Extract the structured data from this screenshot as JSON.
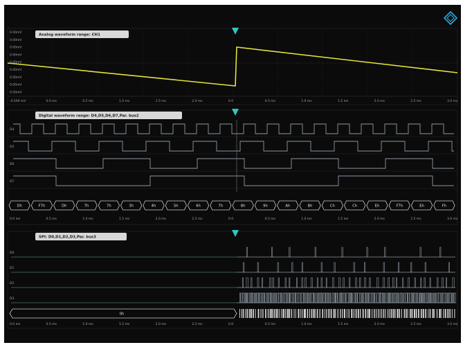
{
  "analog_panel": {
    "title": "Analog waveform range: CH1",
    "y_labels": [
      "0.00mV",
      "0.00mV",
      "0.00mV",
      "0.00mV",
      "0.00mV",
      "0.00mV",
      "0.00mV",
      "0.00mV",
      "0.00mV"
    ],
    "x_labels": [
      "-0.500 mV",
      "0.0 ms",
      "0.5 ms",
      "1.0 ms",
      "1.5 ms",
      "2.0 ms",
      "0.0",
      "0.5 ms",
      "1.0 ms",
      "1.5 ms",
      "2.0 ms",
      "2.5 ms",
      "3.0 ms"
    ],
    "trace_color": "#e4e43a"
  },
  "digital_panel": {
    "title": "Digital waveform range: D4,D5,D6,D7,Par. bus2",
    "channels": [
      "D4",
      "D5",
      "D6",
      "D7"
    ],
    "bus_values": [
      "Dh",
      "F7h",
      "Dh",
      "7h",
      "7h",
      "3h",
      "4h",
      "5h",
      "6h",
      "7h",
      "8h",
      "9h",
      "Ah",
      "Bh",
      "Ch",
      "Ch",
      "Eh",
      "F7h",
      "Eh",
      "Fh"
    ],
    "x_labels": [
      "0.0 ms",
      "0.5 ms",
      "1.0 ms",
      "1.5 ms",
      "2.0 ms",
      "2.5 ms",
      "0.0",
      "0.5 ms",
      "1.0 ms",
      "1.5 ms",
      "2.0 ms",
      "2.5 ms",
      "3.0 ms"
    ]
  },
  "spi_panel": {
    "title": "SPI: D0,D1,D2,D3,Par. bus3",
    "channels": [
      "D0",
      "D1",
      "D2",
      "D3"
    ],
    "bus_value": "0h",
    "x_labels": [
      "0.0 ms",
      "0.5 ms",
      "1.0 ms",
      "1.5 ms",
      "2.0 ms",
      "2.5 ms",
      "0.0",
      "0.5 ms",
      "1.0 ms",
      "1.5 ms",
      "2.0 ms",
      "2.5 ms",
      "3.0 ms"
    ]
  },
  "colors": {
    "background": "#0b0b0b",
    "trigger": "#2fc6c0",
    "trace": "#e4e43a",
    "digital": "#8e9aa4",
    "grid": "#4a4a4a",
    "logo": "#2aa9e0"
  },
  "icons": {
    "logo": "diamond-logo-icon",
    "trigger": "trigger-marker-icon"
  }
}
